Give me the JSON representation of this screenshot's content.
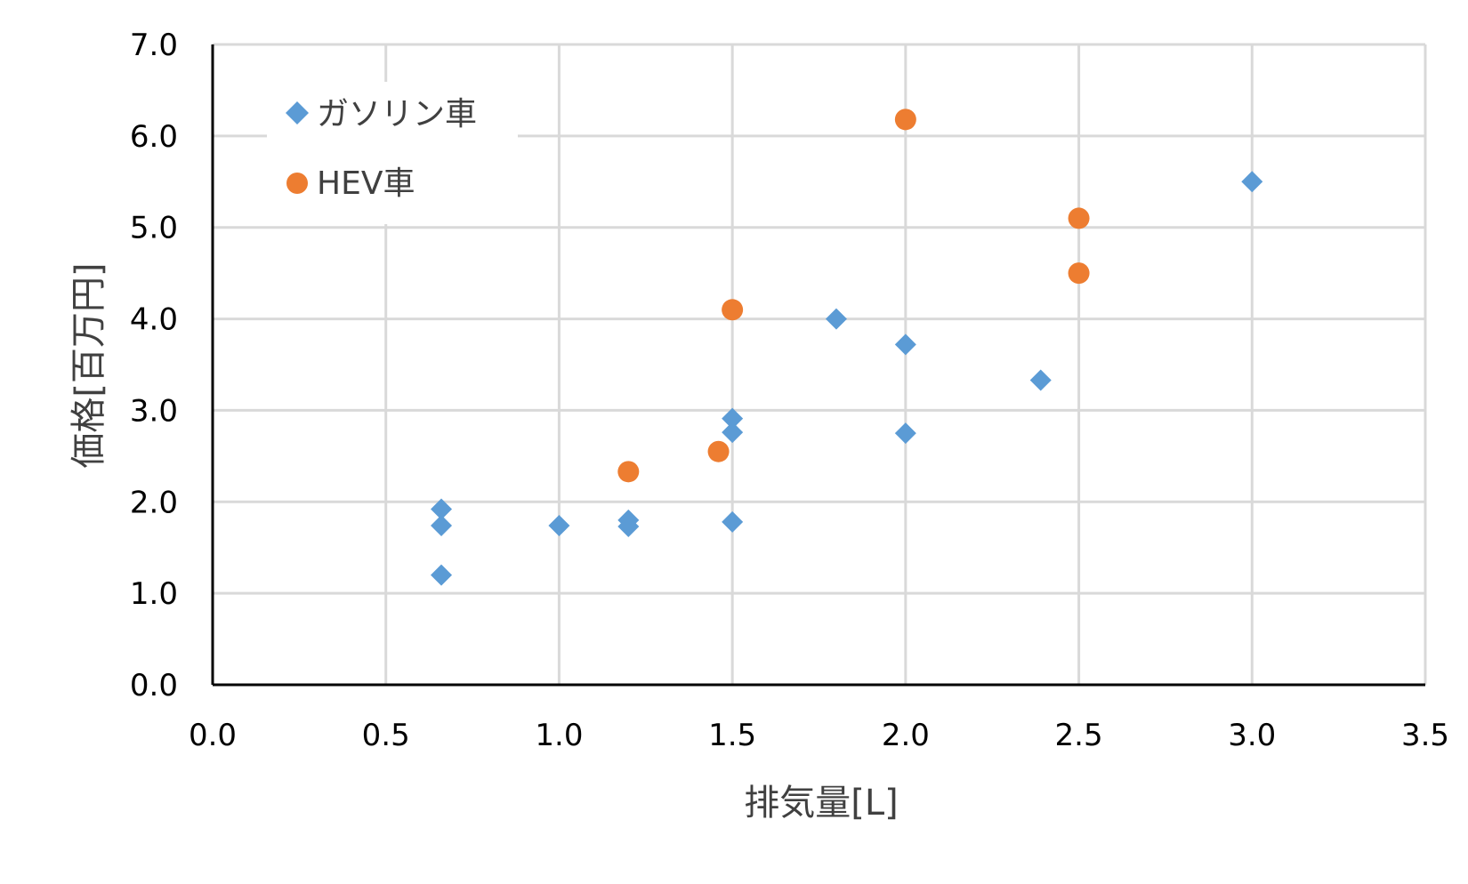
{
  "chart_data": {
    "type": "scatter",
    "xlabel": "排気量[L]",
    "ylabel": "価格[百万円]",
    "xlim": [
      0,
      3.5
    ],
    "ylim": [
      0,
      7
    ],
    "x_ticks": [
      "0.0",
      "0.5",
      "1.0",
      "1.5",
      "2.0",
      "2.5",
      "3.0",
      "3.5"
    ],
    "y_ticks": [
      "0.0",
      "1.0",
      "2.0",
      "3.0",
      "4.0",
      "5.0",
      "6.0",
      "7.0"
    ],
    "grid": true,
    "legend_position": "top-left",
    "series": [
      {
        "name": "ガソリン車",
        "marker": "diamond",
        "color": "#5B9BD5",
        "points": [
          {
            "x": 0.66,
            "y": 1.92
          },
          {
            "x": 0.66,
            "y": 1.74
          },
          {
            "x": 0.66,
            "y": 1.2
          },
          {
            "x": 1.0,
            "y": 1.74
          },
          {
            "x": 1.2,
            "y": 1.8
          },
          {
            "x": 1.2,
            "y": 1.73
          },
          {
            "x": 1.5,
            "y": 2.91
          },
          {
            "x": 1.5,
            "y": 2.76
          },
          {
            "x": 1.5,
            "y": 1.78
          },
          {
            "x": 1.8,
            "y": 4.0
          },
          {
            "x": 2.0,
            "y": 3.72
          },
          {
            "x": 2.0,
            "y": 2.75
          },
          {
            "x": 2.39,
            "y": 3.33
          },
          {
            "x": 3.0,
            "y": 5.5
          }
        ]
      },
      {
        "name": "HEV車",
        "marker": "circle",
        "color": "#ED7D31",
        "points": [
          {
            "x": 1.2,
            "y": 2.33
          },
          {
            "x": 1.46,
            "y": 2.55
          },
          {
            "x": 1.5,
            "y": 4.1
          },
          {
            "x": 2.0,
            "y": 6.18
          },
          {
            "x": 2.5,
            "y": 5.1
          },
          {
            "x": 2.5,
            "y": 4.5
          }
        ]
      }
    ]
  }
}
